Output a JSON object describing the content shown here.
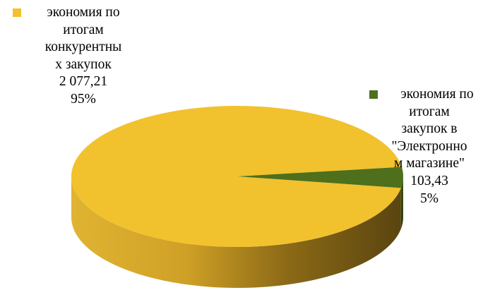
{
  "chart_data": {
    "type": "pie",
    "style": "3d",
    "legend": "none",
    "slices": [
      {
        "label": "экономия по итогам конкурентных закупок",
        "label_lines": [
          "экономия по",
          "итогам",
          "конкурентны",
          "х закупок"
        ],
        "value": 2077.21,
        "value_text": "2 077,21",
        "percent_text": "95%",
        "color": "#F2C12E"
      },
      {
        "label": "экономия по итогам закупок в \"Электронном магазине\"",
        "label_lines": [
          "экономия по",
          "итогам",
          "закупок в",
          "\"Электронно",
          "м магазине\""
        ],
        "value": 103.43,
        "value_text": "103,43",
        "percent_text": "5%",
        "color": "#4E6F1B"
      }
    ]
  }
}
